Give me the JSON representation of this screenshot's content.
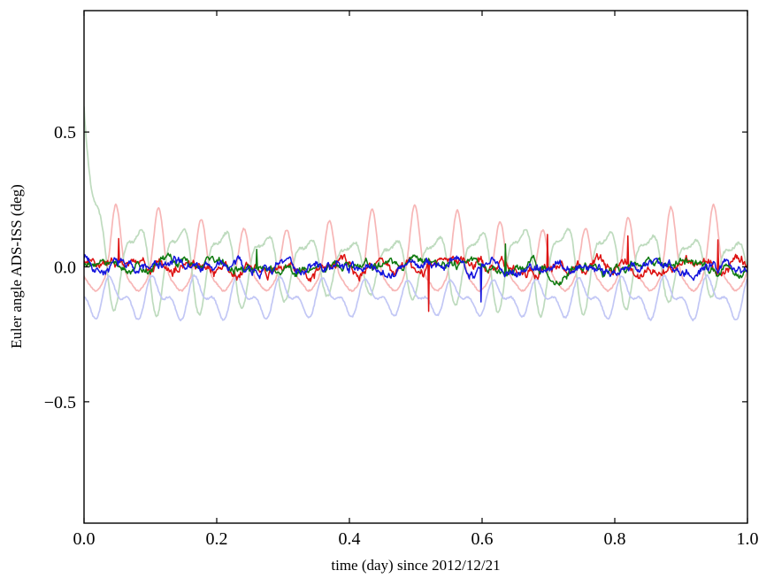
{
  "figure": {
    "background": "#ffffff",
    "frame_color": "#000000"
  },
  "chart_data": {
    "type": "line",
    "title": "",
    "xlabel": "time (day) since 2012/12/21",
    "ylabel": "Euler angle ADS-ISS (deg)",
    "xlim": [
      0.0,
      1.0
    ],
    "ylim": [
      -0.95,
      0.95
    ],
    "xticks": [
      0.0,
      0.2,
      0.4,
      0.6,
      0.8,
      1.0
    ],
    "xtick_labels": [
      "0.0",
      "0.2",
      "0.4",
      "0.6",
      "0.8",
      "1.0"
    ],
    "yticks": [
      -0.5,
      0.0,
      0.5
    ],
    "ytick_labels": [
      "−0.5",
      "0.0",
      "0.5"
    ],
    "grid": false,
    "legend": null,
    "orbits_per_day": 15.54,
    "sampling": {
      "n": 900
    },
    "series": [
      {
        "name": "euler-raw-red-pale",
        "color": "#f7b6b6",
        "width": 1.7,
        "gen": {
          "kind": "peaks",
          "base": -0.07,
          "amp": 0.27,
          "amp_mod": 0.18,
          "amp_mod_freq": 2.3,
          "sharp": 8,
          "phase": 0.75,
          "freq": 15.54,
          "wiggle": 0.018,
          "noise": 0.003,
          "seed": 11
        }
      },
      {
        "name": "euler-raw-green-pale",
        "color": "#bedbbe",
        "width": 1.7,
        "gen": {
          "kind": "sine",
          "base": 0.015,
          "a1": 0.115,
          "a2": 0.045,
          "phase1": 0.2,
          "phase2": 2.4,
          "freq": 15.54,
          "amp_mod": 0.25,
          "amp_mod_freq": 1.7,
          "noise": 0.005,
          "seed": 22,
          "transient": {
            "y0": 0.52,
            "tau": 0.012
          }
        }
      },
      {
        "name": "euler-raw-blue-pale",
        "color": "#c2c7f5",
        "width": 1.7,
        "gen": {
          "kind": "sine",
          "base": -0.115,
          "a1": 0.052,
          "a2": 0.033,
          "phase1": 3.6,
          "phase2": 0.9,
          "freq": 15.54,
          "amp_mod": 0.12,
          "amp_mod_freq": 1.3,
          "noise": 0.003,
          "seed": 33
        }
      },
      {
        "name": "euler-filtered-red",
        "color": "#dd1111",
        "width": 1.5,
        "gen": {
          "kind": "noise",
          "scale": 0.013,
          "decay": 0.93,
          "jitter": 0.0045,
          "v0": 0.02,
          "seed": 44,
          "spikes": [
            {
              "t": 0.052,
              "y": 0.105
            },
            {
              "t": 0.52,
              "y": -0.165
            },
            {
              "t": 0.698,
              "y": 0.12
            },
            {
              "t": 0.82,
              "y": 0.115
            },
            {
              "t": 0.955,
              "y": 0.1
            }
          ]
        }
      },
      {
        "name": "euler-filtered-green",
        "color": "#0f7a0f",
        "width": 1.5,
        "gen": {
          "kind": "noise",
          "scale": 0.011,
          "decay": 0.93,
          "jitter": 0.004,
          "v0": 0.0,
          "seed": 91,
          "spikes": [
            {
              "t": 0.26,
              "y": 0.065
            },
            {
              "t": 0.635,
              "y": 0.085
            }
          ]
        }
      },
      {
        "name": "euler-filtered-blue",
        "color": "#1414dd",
        "width": 1.5,
        "gen": {
          "kind": "noise",
          "scale": 0.013,
          "decay": 0.93,
          "jitter": 0.0045,
          "v0": 0.05,
          "seed": 7,
          "spikes": [
            {
              "t": 0.598,
              "y": -0.13
            }
          ]
        }
      }
    ]
  }
}
